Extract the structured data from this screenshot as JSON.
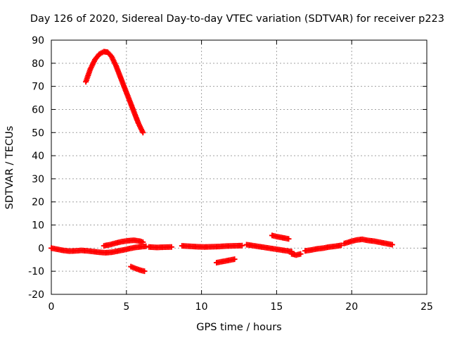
{
  "chart_data": {
    "type": "scatter",
    "title": "Day 126 of 2020, Sidereal Day-to-day VTEC variation (SDTVAR) for receiver p223",
    "xlabel": "GPS time / hours",
    "ylabel": "SDTVAR / TECUs",
    "xlim": [
      0,
      25
    ],
    "ylim": [
      -20,
      90
    ],
    "xticks": [
      0,
      5,
      10,
      15,
      20,
      25
    ],
    "yticks": [
      -20,
      -10,
      0,
      10,
      20,
      30,
      40,
      50,
      60,
      70,
      80,
      90
    ],
    "grid": true,
    "legend": "none",
    "marker": "+",
    "series": [
      {
        "name": "SDTVAR",
        "color": "#ff0000",
        "segments": [
          {
            "x": [
              2.3,
              2.6,
              2.9,
              3.2,
              3.5,
              3.75,
              4.0,
              4.3,
              4.6,
              4.9,
              5.2,
              5.5,
              5.8,
              6.1
            ],
            "y": [
              72,
              77.5,
              81.5,
              84,
              85,
              84.8,
              83,
              79,
              74,
              69,
              64,
              59,
              54,
              50
            ]
          },
          {
            "x": [
              0.0,
              0.4,
              0.8,
              1.2,
              1.6,
              2.0,
              2.4,
              2.8,
              3.2,
              3.6,
              4.0,
              4.4,
              4.8,
              5.2,
              5.6,
              6.0,
              6.3
            ],
            "y": [
              0,
              -0.5,
              -1,
              -1.3,
              -1.2,
              -1.0,
              -1.2,
              -1.5,
              -1.8,
              -2.0,
              -1.8,
              -1.3,
              -0.8,
              -0.2,
              0.3,
              0.6,
              0.8
            ]
          },
          {
            "x": [
              3.5,
              3.9,
              4.3,
              4.7,
              5.1,
              5.5,
              5.9,
              6.1
            ],
            "y": [
              1.0,
              1.5,
              2.2,
              2.8,
              3.2,
              3.4,
              3.0,
              2.6
            ]
          },
          {
            "x": [
              5.3,
              5.6,
              5.9,
              6.2
            ],
            "y": [
              -8,
              -8.8,
              -9.5,
              -10
            ]
          },
          {
            "x": [
              6.5,
              7.0,
              7.5,
              8.0
            ],
            "y": [
              0.5,
              0.3,
              0.4,
              0.5
            ]
          },
          {
            "x": [
              8.7,
              9.2,
              9.7,
              10.2,
              10.7,
              11.2,
              11.7,
              12.2,
              12.7
            ],
            "y": [
              1.0,
              0.8,
              0.6,
              0.5,
              0.6,
              0.7,
              0.9,
              1.0,
              1.1
            ]
          },
          {
            "x": [
              11.0,
              11.4,
              11.8,
              12.2
            ],
            "y": [
              -6.3,
              -5.8,
              -5.3,
              -4.8
            ]
          },
          {
            "x": [
              13.0,
              13.5,
              14.0,
              14.5,
              15.0,
              15.5,
              16.0
            ],
            "y": [
              1.5,
              1.0,
              0.5,
              0.0,
              -0.5,
              -1.0,
              -1.5
            ]
          },
          {
            "x": [
              14.7,
              15.0,
              15.4,
              15.8
            ],
            "y": [
              5.5,
              5.0,
              4.5,
              4.0
            ]
          },
          {
            "x": [
              16.0,
              16.3,
              16.6
            ],
            "y": [
              -2.5,
              -3.0,
              -2.5
            ]
          },
          {
            "x": [
              16.9,
              17.3,
              17.7,
              18.1,
              18.5,
              18.9,
              19.3
            ],
            "y": [
              -1.2,
              -0.8,
              -0.3,
              0.0,
              0.5,
              0.8,
              1.2
            ]
          },
          {
            "x": [
              19.5,
              19.9,
              20.3,
              20.7,
              21.1,
              21.5,
              21.9,
              22.3,
              22.7
            ],
            "y": [
              2.0,
              2.8,
              3.5,
              3.8,
              3.3,
              3.0,
              2.5,
              2.0,
              1.5
            ]
          }
        ]
      }
    ]
  }
}
